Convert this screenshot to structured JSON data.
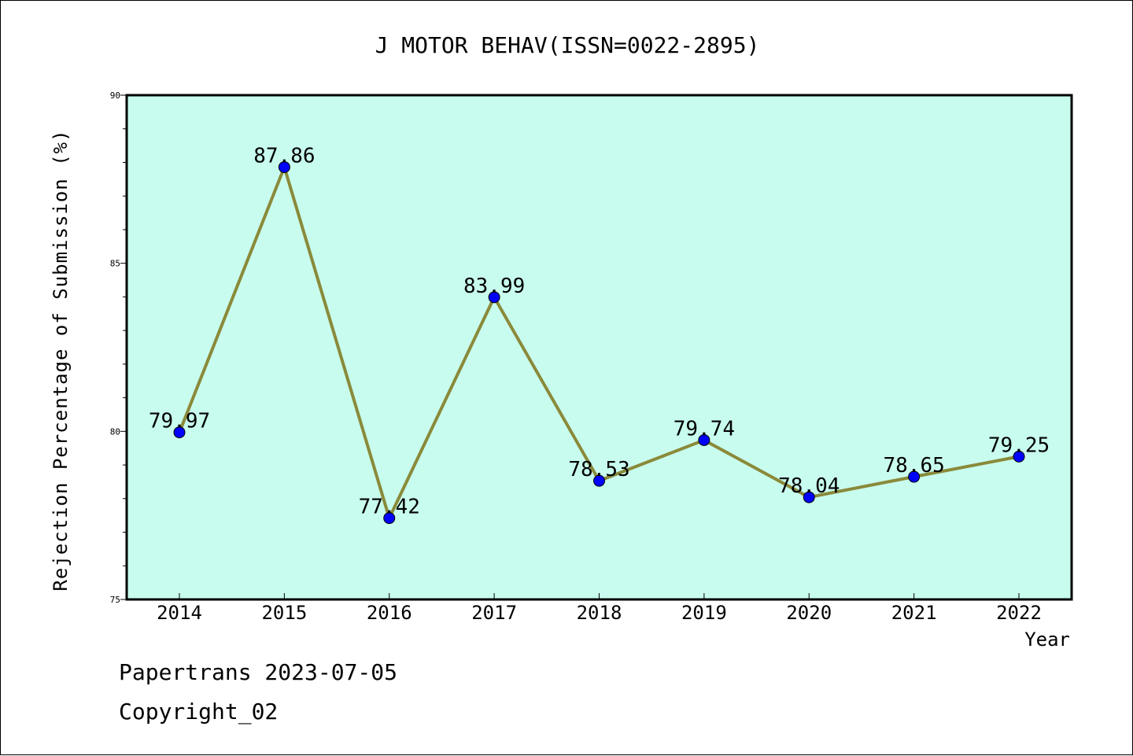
{
  "chart_data": {
    "type": "line",
    "title": "J MOTOR BEHAV(ISSN=0022-2895)",
    "xlabel": "Year",
    "ylabel": "Rejection Percentage of Submission (%)",
    "categories": [
      "2014",
      "2015",
      "2016",
      "2017",
      "2018",
      "2019",
      "2020",
      "2021",
      "2022"
    ],
    "values": [
      79.97,
      87.86,
      77.42,
      83.99,
      78.53,
      79.74,
      78.04,
      78.65,
      79.25
    ],
    "value_labels": [
      "79.97",
      "87.86",
      "77.42",
      "83.99",
      "78.53",
      "79.74",
      "78.04",
      "78.65",
      "79.25"
    ],
    "ylim": [
      75,
      90
    ],
    "yticks": [
      "75",
      "80",
      "85",
      "90"
    ],
    "grid": false,
    "colors": {
      "plot_background": "#c8fcee",
      "line": "#8a8a3a",
      "marker": "#0000ff"
    }
  },
  "footer": {
    "line1": "Papertrans 2023-07-05",
    "line2": "Copyright_02"
  }
}
